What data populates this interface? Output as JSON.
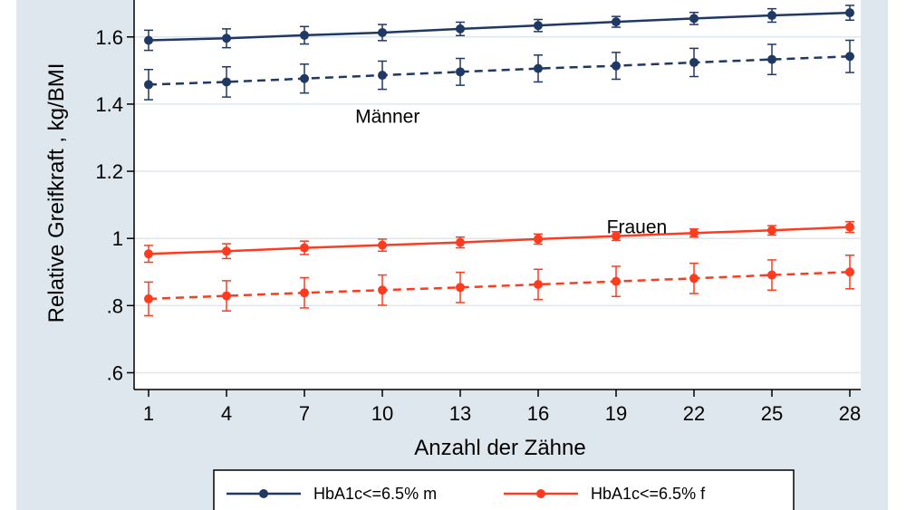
{
  "chart_data": {
    "type": "line",
    "title": "",
    "xlabel": "Anzahl der Zähne",
    "ylabel": "Relative Greifkraft , kg/BMI",
    "x": [
      1,
      4,
      7,
      10,
      13,
      16,
      19,
      22,
      25,
      28
    ],
    "x_tick_labels": [
      "1",
      "4",
      "7",
      "10",
      "13",
      "16",
      "19",
      "22",
      "25",
      "28"
    ],
    "y_ticks": [
      0.6,
      0.8,
      1.0,
      1.2,
      1.4,
      1.6
    ],
    "y_tick_labels": [
      ".6",
      ".8",
      "1",
      "1.2",
      "1.4",
      "1.6"
    ],
    "ylim": [
      0.55,
      1.71
    ],
    "grid": true,
    "annotations": [
      {
        "text": "Männer",
        "x": 10.2,
        "y": 1.345
      },
      {
        "text": "Frauen",
        "x": 19.8,
        "y": 1.015
      }
    ],
    "series": [
      {
        "name": "HbA1c<=6.5% m",
        "color": "#1f3864",
        "dash": "solid",
        "values": [
          1.59,
          1.596,
          1.605,
          1.613,
          1.624,
          1.634,
          1.645,
          1.655,
          1.664,
          1.672
        ],
        "err": [
          0.03,
          0.028,
          0.026,
          0.024,
          0.02,
          0.018,
          0.016,
          0.018,
          0.02,
          0.022
        ]
      },
      {
        "name": "",
        "color": "#1f3864",
        "dash": "dashed",
        "values": [
          1.458,
          1.466,
          1.476,
          1.486,
          1.496,
          1.506,
          1.514,
          1.524,
          1.533,
          1.542
        ],
        "err": [
          0.045,
          0.045,
          0.043,
          0.042,
          0.04,
          0.04,
          0.04,
          0.042,
          0.045,
          0.048
        ]
      },
      {
        "name": "HbA1c<=6.5% f",
        "color": "#ff3b1f",
        "dash": "solid",
        "values": [
          0.954,
          0.962,
          0.972,
          0.98,
          0.988,
          0.998,
          1.007,
          1.016,
          1.024,
          1.034
        ],
        "err": [
          0.025,
          0.022,
          0.02,
          0.018,
          0.016,
          0.015,
          0.013,
          0.012,
          0.014,
          0.016
        ]
      },
      {
        "name": "",
        "color": "#ff3b1f",
        "dash": "dashed",
        "values": [
          0.82,
          0.829,
          0.838,
          0.846,
          0.854,
          0.863,
          0.872,
          0.881,
          0.891,
          0.9
        ],
        "err": [
          0.05,
          0.045,
          0.045,
          0.045,
          0.045,
          0.045,
          0.045,
          0.045,
          0.045,
          0.05
        ]
      }
    ],
    "legend": {
      "placement": "bottom",
      "entries": [
        "HbA1c<=6.5% m",
        "HbA1c<=6.5% f"
      ]
    },
    "colors": {
      "frame_background": "#dfe7ee",
      "plot_background": "#ffffff",
      "grid": "#dfe7ee"
    }
  }
}
